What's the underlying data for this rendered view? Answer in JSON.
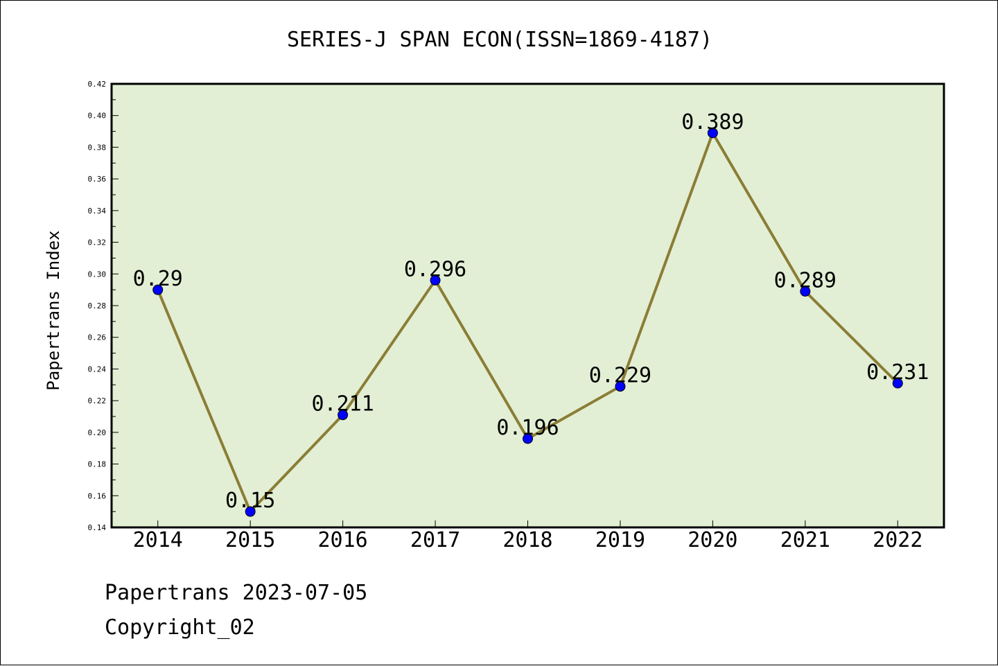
{
  "chart_data": {
    "type": "line",
    "title": "SERIES-J SPAN ECON(ISSN=1869-4187)",
    "xlabel": "",
    "ylabel": "Papertrans Index",
    "categories": [
      "2014",
      "2015",
      "2016",
      "2017",
      "2018",
      "2019",
      "2020",
      "2021",
      "2022"
    ],
    "values": [
      0.29,
      0.15,
      0.211,
      0.296,
      0.196,
      0.229,
      0.389,
      0.289,
      0.231
    ],
    "data_labels": [
      "0.29",
      "0.15",
      "0.211",
      "0.296",
      "0.196",
      "0.229",
      "0.389",
      "0.289",
      "0.231"
    ],
    "ylim": [
      0.14,
      0.42
    ],
    "yticks": [
      "0.14",
      "0.16",
      "0.18",
      "0.20",
      "0.22",
      "0.24",
      "0.26",
      "0.28",
      "0.30",
      "0.32",
      "0.34",
      "0.36",
      "0.38",
      "0.40",
      "0.42"
    ],
    "grid": false,
    "legend": "none",
    "colors": {
      "plot_background": "#e2efd5",
      "line": "#8b7d35",
      "marker": "#0000ff",
      "frame": "#000000"
    }
  },
  "footer": {
    "line1": "Papertrans 2023-07-05",
    "line2": "Copyright_02"
  }
}
